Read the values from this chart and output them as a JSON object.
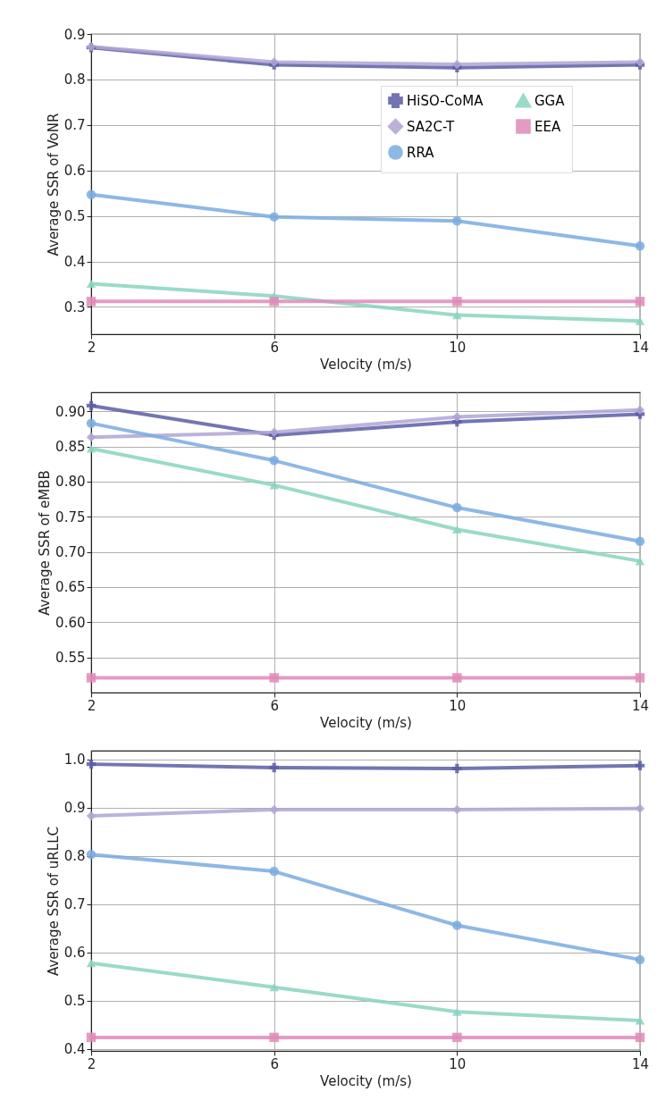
{
  "chart_data": [
    {
      "type": "line",
      "xlabel": "Velocity (m/s)",
      "ylabel": "Average SSR of VoNR",
      "x": [
        2,
        6,
        10,
        14
      ],
      "xlim": [
        2,
        14
      ],
      "xticks": [
        2,
        6,
        10,
        14
      ],
      "ylim": [
        0.24,
        0.9
      ],
      "yticks": [
        0.3,
        0.4,
        0.5,
        0.6,
        0.7,
        0.8,
        0.9
      ],
      "grid": true,
      "legend": "top right",
      "series": [
        {
          "name": "HiSO-CoMA",
          "color": "#5b5ea6",
          "marker": "cross",
          "values": [
            0.87,
            0.832,
            0.826,
            0.832
          ]
        },
        {
          "name": "SA2C-T",
          "color": "#b0a4d4",
          "marker": "diamond",
          "values": [
            0.872,
            0.838,
            0.833,
            0.838
          ]
        },
        {
          "name": "RRA",
          "color": "#7aace0",
          "marker": "circle",
          "values": [
            0.547,
            0.498,
            0.489,
            0.434
          ]
        },
        {
          "name": "GGA",
          "color": "#88d4c0",
          "marker": "triangle",
          "values": [
            0.351,
            0.324,
            0.282,
            0.269
          ]
        },
        {
          "name": "EEA",
          "color": "#e08ab8",
          "marker": "square",
          "values": [
            0.312,
            0.312,
            0.312,
            0.312
          ]
        }
      ]
    },
    {
      "type": "line",
      "xlabel": "Velocity (m/s)",
      "ylabel": "Average SSR of eMBB",
      "x": [
        2,
        6,
        10,
        14
      ],
      "xlim": [
        2,
        14
      ],
      "xticks": [
        2,
        6,
        10,
        14
      ],
      "ylim": [
        0.5,
        0.927
      ],
      "yticks": [
        {
          "value": 0.55,
          "label": "0.55"
        },
        {
          "value": 0.6,
          "label": "0.60"
        },
        {
          "value": 0.65,
          "label": "0.65"
        },
        {
          "value": 0.7,
          "label": "0.70"
        },
        {
          "value": 0.75,
          "label": "0.75"
        },
        {
          "value": 0.8,
          "label": "0.80"
        },
        {
          "value": 0.85,
          "label": "0.85"
        },
        {
          "value": 0.9,
          "label": "0.90"
        }
      ],
      "grid": true,
      "legend": "top right",
      "series": [
        {
          "name": "HiSO-CoMA",
          "color": "#5b5ea6",
          "marker": "cross",
          "values": [
            0.908,
            0.866,
            0.885,
            0.896
          ]
        },
        {
          "name": "SA2C-T",
          "color": "#b0a4d4",
          "marker": "diamond",
          "values": [
            0.863,
            0.87,
            0.892,
            0.902
          ]
        },
        {
          "name": "RRA",
          "color": "#7aace0",
          "marker": "circle",
          "values": [
            0.883,
            0.83,
            0.763,
            0.715
          ]
        },
        {
          "name": "GGA",
          "color": "#88d4c0",
          "marker": "triangle",
          "values": [
            0.847,
            0.795,
            0.732,
            0.687
          ]
        },
        {
          "name": "EEA",
          "color": "#e08ab8",
          "marker": "square",
          "values": [
            0.521,
            0.521,
            0.521,
            0.521
          ]
        }
      ]
    },
    {
      "type": "line",
      "xlabel": "Velocity (m/s)",
      "ylabel": "Average SSR of uRLLC",
      "x": [
        2,
        6,
        10,
        14
      ],
      "xlim": [
        2,
        14
      ],
      "xticks": [
        2,
        6,
        10,
        14
      ],
      "ylim": [
        0.396,
        1.018
      ],
      "yticks": [
        0.4,
        0.5,
        0.6,
        0.7,
        0.8,
        0.9,
        {
          "value": 1,
          "label": "1.0"
        }
      ],
      "grid": true,
      "legend": "top right",
      "series": [
        {
          "name": "HiSO-CoMA",
          "color": "#5b5ea6",
          "marker": "cross",
          "values": [
            0.99,
            0.983,
            0.981,
            0.987
          ]
        },
        {
          "name": "SA2C-T",
          "color": "#b0a4d4",
          "marker": "diamond",
          "values": [
            0.883,
            0.896,
            0.896,
            0.898
          ]
        },
        {
          "name": "RRA",
          "color": "#7aace0",
          "marker": "circle",
          "values": [
            0.803,
            0.768,
            0.656,
            0.585
          ]
        },
        {
          "name": "GGA",
          "color": "#88d4c0",
          "marker": "triangle",
          "values": [
            0.578,
            0.528,
            0.477,
            0.459
          ]
        },
        {
          "name": "EEA",
          "color": "#e08ab8",
          "marker": "square",
          "values": [
            0.424,
            0.424,
            0.424,
            0.424
          ]
        }
      ]
    }
  ]
}
